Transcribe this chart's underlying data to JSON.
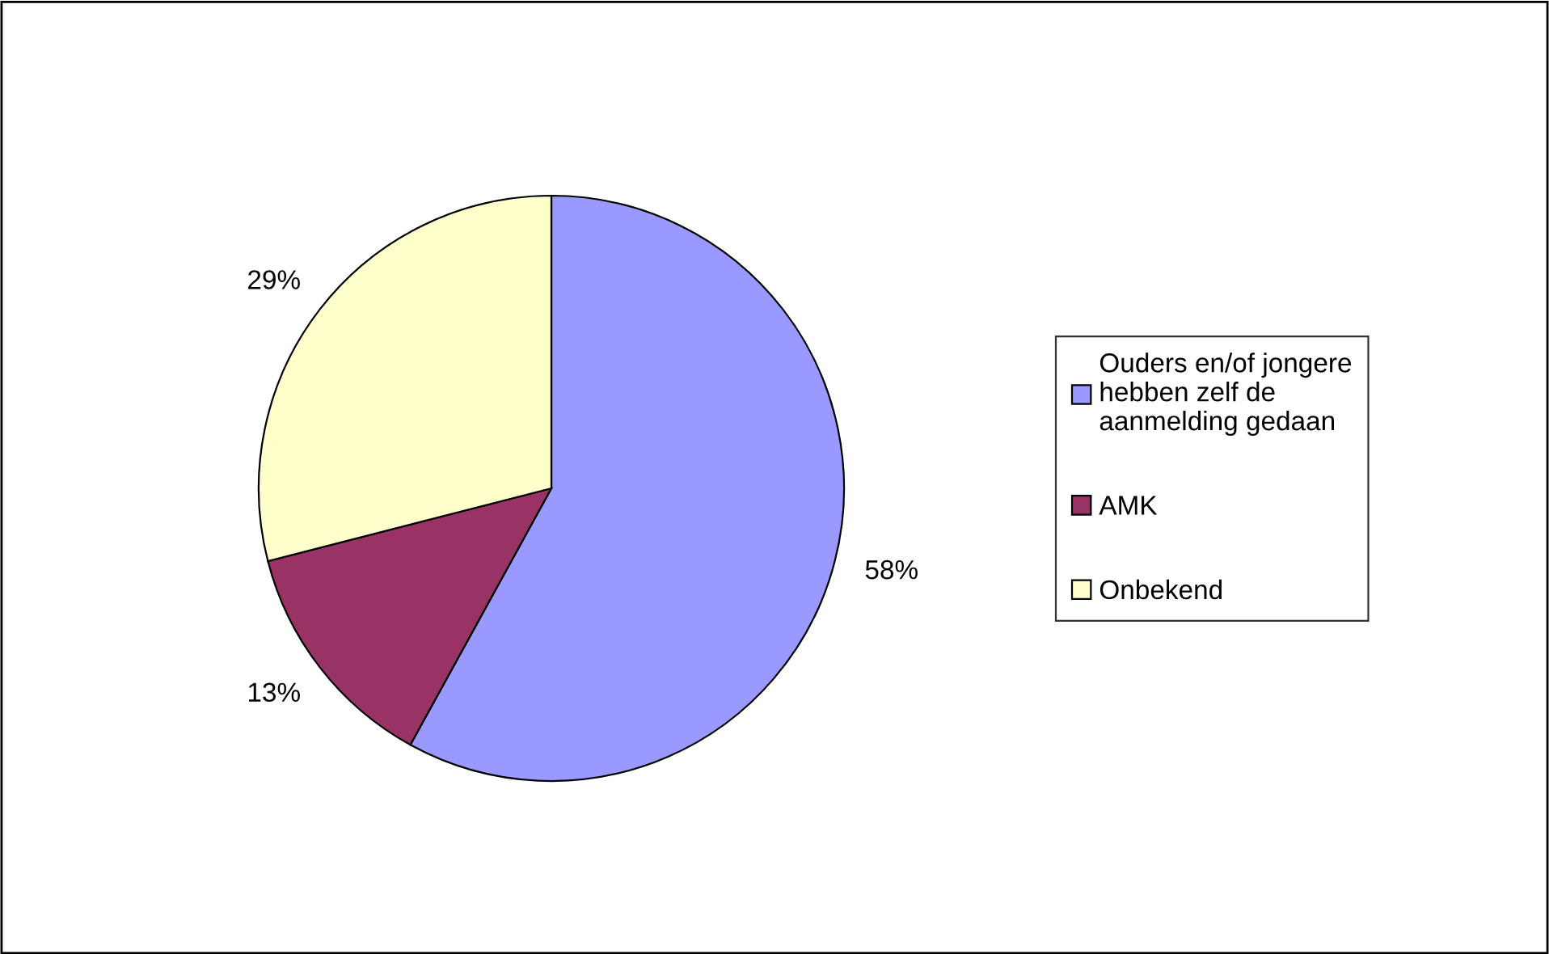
{
  "chart_data": {
    "type": "pie",
    "categories": [
      "Ouders en/of jongere\nhebben zelf de\naanmelding gedaan",
      "AMK",
      "Onbekend"
    ],
    "values": [
      58,
      13,
      29
    ],
    "colors": [
      "#9999ff",
      "#993366",
      "#ffffcc"
    ],
    "value_labels": [
      "58%",
      "13%",
      "29%"
    ],
    "legend": "right"
  }
}
